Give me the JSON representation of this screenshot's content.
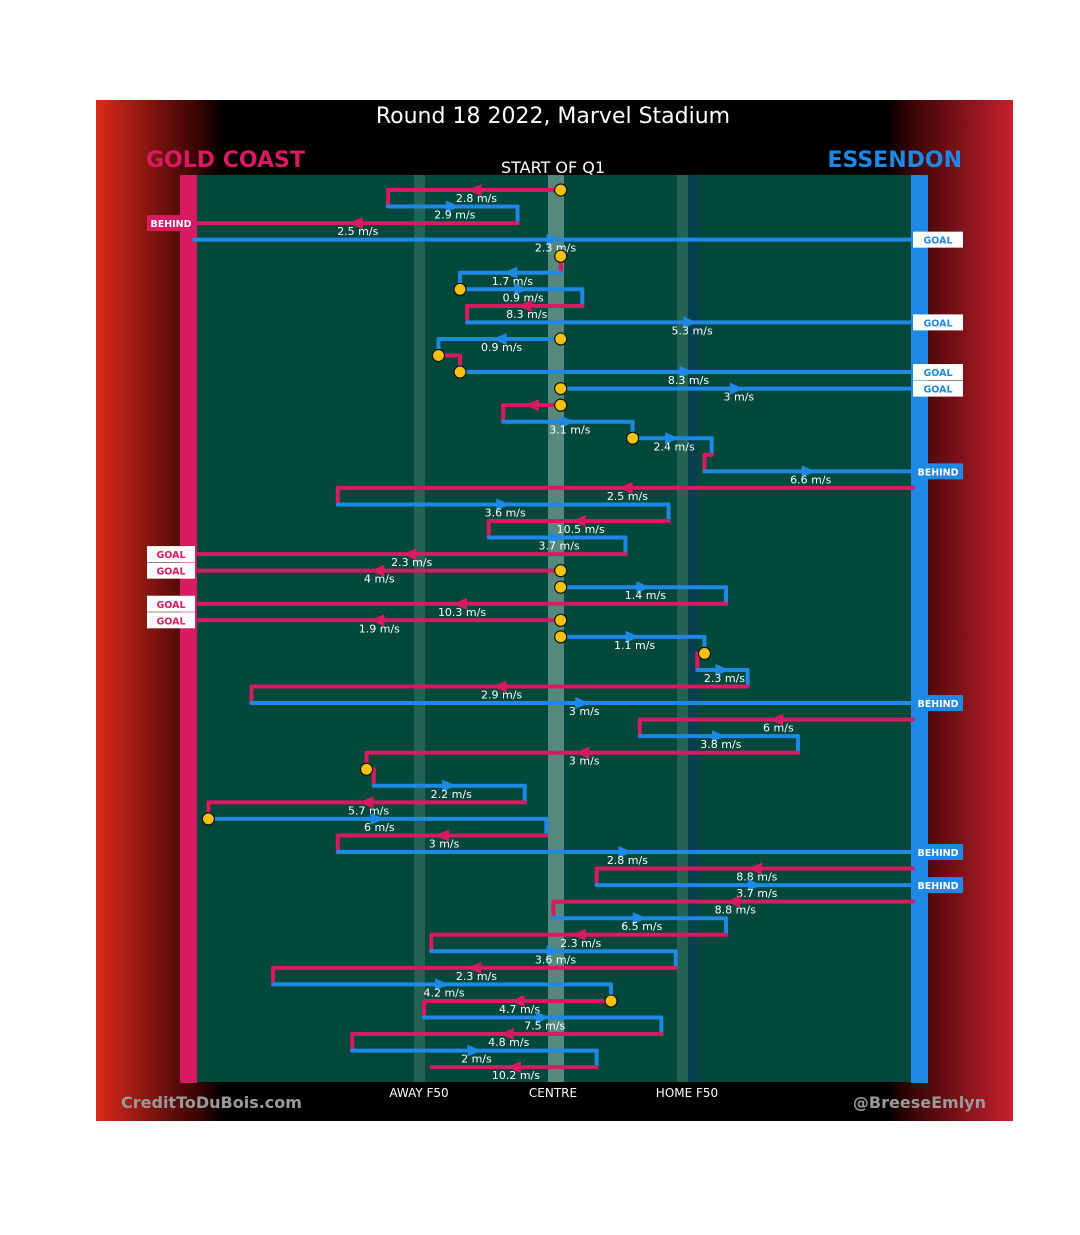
{
  "title": "Round 18 2022, Marvel Stadium",
  "subtitle": "START OF Q1",
  "teams": {
    "away": "GOLD COAST",
    "home": "ESSENDON"
  },
  "colors": {
    "away": "#d81b60",
    "home": "#1e88e5",
    "ground": "#02483d",
    "ball": "#f4c20d",
    "frame_dark": "#000000"
  },
  "axis_labels": {
    "away_f50": "AWAY F50",
    "centre": "CENTRE",
    "home_f50": "HOME F50"
  },
  "credits": {
    "left": "CreditToDuBois.com",
    "right": "@BreeseEmlyn"
  },
  "chart_data": {
    "type": "line",
    "description_axis": "x = field position from Gold Coast goal (0) to Essendon goal (1); rows = chains in time order",
    "chains": [
      {
        "team": "away",
        "from": 0.51,
        "to": 0.27,
        "label": "2.8 m/s",
        "ball": true
      },
      {
        "team": "home",
        "from": 0.27,
        "to": 0.45,
        "label": "2.9 m/s"
      },
      {
        "team": "away",
        "from": 0.45,
        "to": 0.0,
        "label": "2.5 m/s",
        "outcome": "BEHIND"
      },
      {
        "team": "home",
        "from": 0.0,
        "to": 1.0,
        "label": "2.3 m/s",
        "outcome": "GOAL"
      },
      {
        "team": "away",
        "from": 0.51,
        "to": 0.51,
        "label": "",
        "ball": true
      },
      {
        "team": "home",
        "from": 0.51,
        "to": 0.37,
        "label": "1.7 m/s"
      },
      {
        "team": "home",
        "from": 0.37,
        "to": 0.54,
        "label": "0.9 m/s",
        "ball": true
      },
      {
        "team": "away",
        "from": 0.54,
        "to": 0.38,
        "label": "8.3 m/s"
      },
      {
        "team": "home",
        "from": 0.38,
        "to": 1.0,
        "label": "5.3 m/s",
        "outcome": "GOAL"
      },
      {
        "team": "home",
        "from": 0.51,
        "to": 0.34,
        "label": "0.9 m/s",
        "ball": true
      },
      {
        "team": "away",
        "from": 0.34,
        "to": 0.37,
        "label": "",
        "ball": true
      },
      {
        "team": "home",
        "from": 0.37,
        "to": 1.0,
        "label": "8.3 m/s",
        "outcome": "GOAL",
        "ball": true
      },
      {
        "team": "home",
        "from": 0.51,
        "to": 1.0,
        "label": "3 m/s",
        "outcome": "GOAL",
        "ball": true
      },
      {
        "team": "away",
        "from": 0.51,
        "to": 0.43,
        "label": "",
        "ball": true
      },
      {
        "team": "home",
        "from": 0.43,
        "to": 0.61,
        "label": "3.1 m/s"
      },
      {
        "team": "home",
        "from": 0.61,
        "to": 0.72,
        "label": "2.4 m/s",
        "ball": true
      },
      {
        "team": "away",
        "from": 0.72,
        "to": 0.71,
        "label": ""
      },
      {
        "team": "home",
        "from": 0.71,
        "to": 1.0,
        "label": "6.6 m/s",
        "outcome": "BEHIND"
      },
      {
        "team": "away",
        "from": 1.0,
        "to": 0.2,
        "label": "2.5 m/s"
      },
      {
        "team": "home",
        "from": 0.2,
        "to": 0.66,
        "label": "3.6 m/s"
      },
      {
        "team": "away",
        "from": 0.66,
        "to": 0.41,
        "label": "10.5 m/s"
      },
      {
        "team": "home",
        "from": 0.41,
        "to": 0.6,
        "label": "3.7 m/s"
      },
      {
        "team": "away",
        "from": 0.6,
        "to": 0.0,
        "label": "2.3 m/s",
        "outcome": "GOAL"
      },
      {
        "team": "away",
        "from": 0.51,
        "to": 0.0,
        "label": "4 m/s",
        "outcome": "GOAL",
        "ball": true
      },
      {
        "team": "home",
        "from": 0.51,
        "to": 0.74,
        "label": "1.4 m/s",
        "ball": true
      },
      {
        "team": "away",
        "from": 0.74,
        "to": 0.0,
        "label": "10.3 m/s",
        "outcome": "GOAL"
      },
      {
        "team": "away",
        "from": 0.51,
        "to": 0.0,
        "label": "1.9 m/s",
        "outcome": "GOAL",
        "ball": true
      },
      {
        "team": "home",
        "from": 0.51,
        "to": 0.71,
        "label": "1.1 m/s",
        "ball": true
      },
      {
        "team": "away",
        "from": 0.71,
        "to": 0.7,
        "label": "",
        "ball": true
      },
      {
        "team": "home",
        "from": 0.7,
        "to": 0.77,
        "label": "2.3 m/s"
      },
      {
        "team": "away",
        "from": 0.77,
        "to": 0.08,
        "label": "2.9 m/s"
      },
      {
        "team": "home",
        "from": 0.08,
        "to": 1.0,
        "label": "3 m/s",
        "outcome": "BEHIND"
      },
      {
        "team": "away",
        "from": 1.0,
        "to": 0.62,
        "label": "6 m/s"
      },
      {
        "team": "home",
        "from": 0.62,
        "to": 0.84,
        "label": "3.8 m/s"
      },
      {
        "team": "away",
        "from": 0.84,
        "to": 0.24,
        "label": "3 m/s"
      },
      {
        "team": "away",
        "from": 0.24,
        "to": 0.25,
        "label": "",
        "ball": true
      },
      {
        "team": "home",
        "from": 0.25,
        "to": 0.46,
        "label": "2.2 m/s"
      },
      {
        "team": "away",
        "from": 0.46,
        "to": 0.02,
        "label": "5.7 m/s"
      },
      {
        "team": "home",
        "from": 0.02,
        "to": 0.49,
        "label": "6 m/s",
        "ball": true
      },
      {
        "team": "away",
        "from": 0.49,
        "to": 0.2,
        "label": "3 m/s"
      },
      {
        "team": "home",
        "from": 0.2,
        "to": 1.0,
        "label": "2.8 m/s",
        "outcome": "BEHIND"
      },
      {
        "team": "away",
        "from": 1.0,
        "to": 0.56,
        "label": "8.8 m/s"
      },
      {
        "team": "home",
        "from": 0.56,
        "to": 1.0,
        "label": "3.7 m/s",
        "outcome": "BEHIND"
      },
      {
        "team": "away",
        "from": 1.0,
        "to": 0.5,
        "label": "8.8 m/s"
      },
      {
        "team": "home",
        "from": 0.5,
        "to": 0.74,
        "label": "6.5 m/s"
      },
      {
        "team": "away",
        "from": 0.74,
        "to": 0.33,
        "label": "2.3 m/s"
      },
      {
        "team": "home",
        "from": 0.33,
        "to": 0.67,
        "label": "3.6 m/s"
      },
      {
        "team": "away",
        "from": 0.67,
        "to": 0.11,
        "label": "2.3 m/s"
      },
      {
        "team": "home",
        "from": 0.11,
        "to": 0.58,
        "label": "4.2 m/s"
      },
      {
        "team": "away",
        "from": 0.58,
        "to": 0.32,
        "label": "4.7 m/s",
        "ball": true
      },
      {
        "team": "home",
        "from": 0.32,
        "to": 0.65,
        "label": "7.5 m/s"
      },
      {
        "team": "away",
        "from": 0.65,
        "to": 0.22,
        "label": "4.8 m/s"
      },
      {
        "team": "home",
        "from": 0.22,
        "to": 0.56,
        "label": "2 m/s"
      },
      {
        "team": "away",
        "from": 0.56,
        "to": 0.33,
        "label": "10.2 m/s"
      }
    ]
  }
}
